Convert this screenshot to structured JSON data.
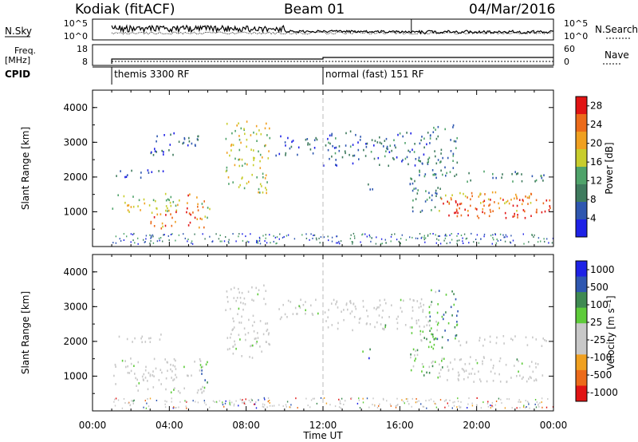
{
  "header": {
    "station": "Kodiak (fitACF)",
    "beam": "Beam 01",
    "date": "04/Mar/2016"
  },
  "panels_top": {
    "nsky_label": "N.Sky",
    "nsky_ticks": [
      "10^5",
      "10^0"
    ],
    "nsearch_label": "N.Search",
    "nsearch_ticks": [
      "10^5",
      "10^0"
    ],
    "freq_label_1": "Freq.",
    "freq_label_2": "[MHz]",
    "freq_ticks": [
      "18",
      "8"
    ],
    "nave_label": "Nave",
    "nave_ticks": [
      "60",
      "0"
    ],
    "cpid_label": "CPID",
    "cpid_entries": [
      {
        "name": "themis 3300 RF",
        "start_hour": 1.0
      },
      {
        "name": "normal (fast) 151 RF",
        "start_hour": 12.0
      }
    ]
  },
  "chart_data": [
    {
      "type": "heatmap",
      "name": "power",
      "ylabel": "Slant Range [km]",
      "ylim": [
        0,
        4500
      ],
      "yticks": [
        "1000",
        "2000",
        "3000",
        "4000"
      ],
      "xlim_hours": [
        0,
        24
      ],
      "colorbar_label": "Power [dB]",
      "colorbar_ticks": [
        "4",
        "8",
        "12",
        "16",
        "20",
        "24",
        "28"
      ],
      "colorbar_range": [
        0,
        30
      ],
      "colors": [
        "#1e22e6",
        "#2f57b0",
        "#3f7b5e",
        "#4fa36a",
        "#c8cd2d",
        "#f0a020",
        "#ec6b1a",
        "#e11414"
      ],
      "regions": [
        {
          "t0": 1.0,
          "t1": 4.5,
          "r0": 900,
          "r1": 1500,
          "level": 0.55
        },
        {
          "t0": 3.0,
          "t1": 4.6,
          "r0": 500,
          "r1": 1100,
          "level": 0.75
        },
        {
          "t0": 4.6,
          "t1": 5.8,
          "r0": 500,
          "r1": 1500,
          "level": 0.8
        },
        {
          "t0": 5.5,
          "t1": 6.1,
          "r0": 800,
          "r1": 1300,
          "level": 0.4
        },
        {
          "t0": 1.1,
          "t1": 3.9,
          "r0": 1950,
          "r1": 2200,
          "level": 0.2
        },
        {
          "t0": 3.0,
          "t1": 5.5,
          "r0": 2600,
          "r1": 3300,
          "level": 0.2
        },
        {
          "t0": 6.9,
          "t1": 9.2,
          "r0": 1500,
          "r1": 3600,
          "level": 0.55
        },
        {
          "t0": 9.5,
          "t1": 11.8,
          "r0": 2600,
          "r1": 3200,
          "level": 0.2
        },
        {
          "t0": 12.0,
          "t1": 17.6,
          "r0": 2300,
          "r1": 3300,
          "level": 0.25
        },
        {
          "t0": 14.0,
          "t1": 14.6,
          "r0": 1500,
          "r1": 1800,
          "level": 0.3
        },
        {
          "t0": 16.5,
          "t1": 18.2,
          "r0": 900,
          "r1": 2600,
          "level": 0.3
        },
        {
          "t0": 17.5,
          "t1": 19.0,
          "r0": 2000,
          "r1": 3500,
          "level": 0.3
        },
        {
          "t0": 18.0,
          "t1": 23.8,
          "r0": 1000,
          "r1": 1550,
          "level": 0.7
        },
        {
          "t0": 18.2,
          "t1": 23.8,
          "r0": 800,
          "r1": 1350,
          "level": 0.95
        },
        {
          "t0": 19.0,
          "t1": 23.6,
          "r0": 1850,
          "r1": 2150,
          "level": 0.35
        }
      ]
    },
    {
      "type": "heatmap",
      "name": "velocity",
      "ylabel": "Slant Range [km]",
      "ylim": [
        0,
        4500
      ],
      "yticks": [
        "1000",
        "2000",
        "3000",
        "4000"
      ],
      "xlim_hours": [
        0,
        24
      ],
      "xticks": [
        "00:00",
        "04:00",
        "08:00",
        "12:00",
        "16:00",
        "20:00",
        "00:00"
      ],
      "xlabel": "Time UT",
      "colorbar_label": "Velocity [m s⁻¹]",
      "colorbar_ticks": [
        "1000",
        "500",
        "100",
        "25",
        "-25",
        "-100",
        "-500",
        "-1000"
      ],
      "colorbar_range": [
        -1200,
        1200
      ],
      "colors": [
        "#e11414",
        "#ec6b1a",
        "#f0a020",
        "#c8c8c8",
        "#c8c8c8",
        "#5ecb3a",
        "#3f8a52",
        "#2f57b0",
        "#1e22e6"
      ],
      "regions": [
        {
          "t0": 1.0,
          "t1": 5.8,
          "r0": 500,
          "r1": 1500,
          "level": 0.5
        },
        {
          "t0": 5.6,
          "t1": 6.2,
          "r0": 800,
          "r1": 1400,
          "level": 0.72
        },
        {
          "t0": 1.1,
          "t1": 3.9,
          "r0": 1950,
          "r1": 2200,
          "level": 0.5
        },
        {
          "t0": 6.9,
          "t1": 9.2,
          "r0": 1500,
          "r1": 3600,
          "level": 0.5
        },
        {
          "t0": 9.5,
          "t1": 11.8,
          "r0": 2600,
          "r1": 3200,
          "level": 0.5
        },
        {
          "t0": 12.0,
          "t1": 17.6,
          "r0": 2300,
          "r1": 3200,
          "level": 0.5
        },
        {
          "t0": 14.0,
          "t1": 14.6,
          "r0": 1500,
          "r1": 1800,
          "level": 0.75
        },
        {
          "t0": 16.5,
          "t1": 18.2,
          "r0": 900,
          "r1": 2600,
          "level": 0.6
        },
        {
          "t0": 17.5,
          "t1": 19.0,
          "r0": 2000,
          "r1": 3500,
          "level": 0.72
        },
        {
          "t0": 18.0,
          "t1": 23.8,
          "r0": 800,
          "r1": 1550,
          "level": 0.5
        },
        {
          "t0": 19.0,
          "t1": 23.6,
          "r0": 1850,
          "r1": 2150,
          "level": 0.5
        }
      ]
    }
  ]
}
